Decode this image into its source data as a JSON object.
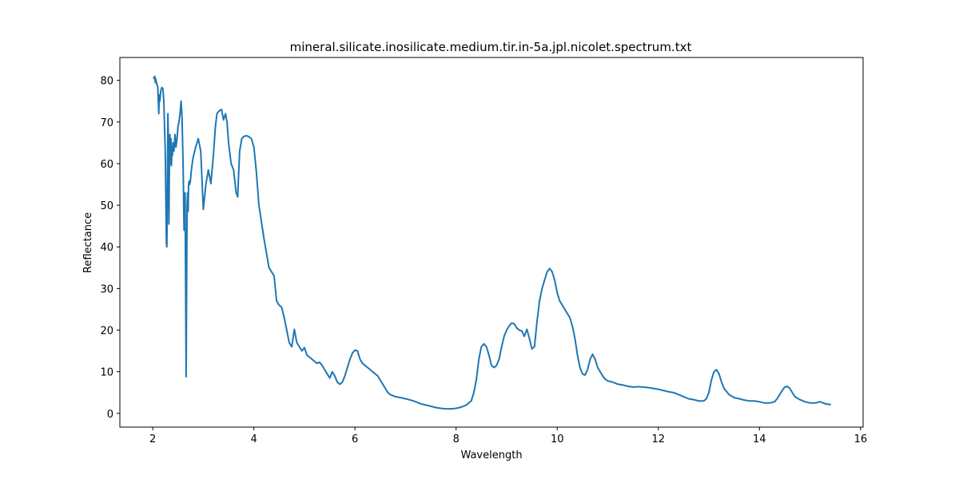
{
  "chart_data": {
    "type": "line",
    "title": "mineral.silicate.inosilicate.medium.tir.in-5a.jpl.nicolet.spectrum.txt",
    "xlabel": "Wavelength",
    "ylabel": "Reflectance",
    "xlim": [
      1.35,
      16.05
    ],
    "ylim": [
      -3.3,
      85.5
    ],
    "xticks": [
      2,
      4,
      6,
      8,
      10,
      12,
      14,
      16
    ],
    "yticks": [
      0,
      10,
      20,
      30,
      40,
      50,
      60,
      70,
      80
    ],
    "grid": false,
    "legend": "none",
    "series": [
      {
        "color": "#1f77b4",
        "x": [
          2.02,
          2.04,
          2.05,
          2.06,
          2.08,
          2.1,
          2.12,
          2.13,
          2.14,
          2.16,
          2.18,
          2.2,
          2.22,
          2.25,
          2.27,
          2.28,
          2.29,
          2.3,
          2.31,
          2.32,
          2.33,
          2.34,
          2.35,
          2.36,
          2.37,
          2.38,
          2.39,
          2.4,
          2.42,
          2.44,
          2.46,
          2.48,
          2.5,
          2.52,
          2.54,
          2.56,
          2.58,
          2.6,
          2.62,
          2.64,
          2.66,
          2.68,
          2.69,
          2.7,
          2.71,
          2.72,
          2.73,
          2.74,
          2.75,
          2.76,
          2.78,
          2.8,
          2.85,
          2.9,
          2.95,
          3.0,
          3.05,
          3.1,
          3.15,
          3.2,
          3.24,
          3.27,
          3.3,
          3.33,
          3.36,
          3.4,
          3.44,
          3.47,
          3.5,
          3.55,
          3.6,
          3.65,
          3.68,
          3.7,
          3.72,
          3.76,
          3.8,
          3.85,
          3.9,
          3.95,
          4.0,
          4.05,
          4.1,
          4.2,
          4.3,
          4.4,
          4.45,
          4.5,
          4.55,
          4.6,
          4.65,
          4.7,
          4.75,
          4.8,
          4.85,
          4.9,
          4.95,
          5.0,
          5.05,
          5.1,
          5.15,
          5.2,
          5.25,
          5.3,
          5.35,
          5.4,
          5.45,
          5.5,
          5.55,
          5.6,
          5.65,
          5.7,
          5.75,
          5.8,
          5.85,
          5.9,
          5.95,
          6.0,
          6.05,
          6.1,
          6.15,
          6.2,
          6.25,
          6.3,
          6.35,
          6.4,
          6.45,
          6.5,
          6.55,
          6.6,
          6.65,
          6.7,
          6.8,
          6.9,
          7.0,
          7.1,
          7.2,
          7.3,
          7.4,
          7.5,
          7.6,
          7.7,
          7.8,
          7.9,
          8.0,
          8.1,
          8.2,
          8.3,
          8.35,
          8.4,
          8.45,
          8.5,
          8.55,
          8.6,
          8.65,
          8.7,
          8.75,
          8.8,
          8.85,
          8.9,
          8.95,
          9.0,
          9.05,
          9.1,
          9.15,
          9.2,
          9.25,
          9.3,
          9.35,
          9.4,
          9.45,
          9.5,
          9.55,
          9.6,
          9.65,
          9.7,
          9.75,
          9.8,
          9.85,
          9.9,
          9.95,
          10.0,
          10.05,
          10.1,
          10.15,
          10.2,
          10.25,
          10.3,
          10.35,
          10.4,
          10.45,
          10.5,
          10.55,
          10.6,
          10.65,
          10.7,
          10.75,
          10.8,
          10.85,
          10.9,
          10.95,
          11.0,
          11.1,
          11.2,
          11.3,
          11.4,
          11.5,
          11.6,
          11.7,
          11.8,
          11.9,
          12.0,
          12.1,
          12.2,
          12.3,
          12.4,
          12.5,
          12.6,
          12.7,
          12.8,
          12.9,
          12.95,
          13.0,
          13.05,
          13.1,
          13.15,
          13.2,
          13.25,
          13.3,
          13.4,
          13.5,
          13.6,
          13.7,
          13.8,
          13.9,
          14.0,
          14.1,
          14.2,
          14.3,
          14.35,
          14.4,
          14.45,
          14.5,
          14.55,
          14.6,
          14.65,
          14.7,
          14.8,
          14.9,
          15.0,
          15.1,
          15.2,
          15.3,
          15.4
        ],
        "y": [
          80.5,
          81.0,
          79.5,
          80.3,
          79.0,
          78.5,
          72.0,
          76.5,
          75.0,
          77.5,
          78.3,
          78.0,
          75.0,
          62.0,
          41.0,
          40.0,
          55.0,
          72.0,
          65.0,
          45.5,
          61.0,
          67.0,
          60.0,
          66.0,
          59.5,
          64.0,
          62.0,
          65.0,
          63.0,
          67.0,
          64.0,
          66.0,
          69.0,
          70.0,
          72.0,
          75.0,
          71.0,
          60.0,
          44.0,
          53.0,
          8.8,
          50.0,
          53.0,
          48.5,
          55.0,
          55.8,
          55.0,
          55.5,
          56.5,
          58.0,
          60.0,
          61.5,
          64.0,
          66.0,
          63.0,
          49.0,
          55.0,
          58.5,
          55.2,
          62.0,
          69.0,
          72.0,
          72.5,
          72.8,
          73.0,
          70.5,
          72.0,
          70.0,
          65.0,
          60.0,
          58.5,
          53.0,
          52.0,
          58.0,
          63.0,
          66.0,
          66.5,
          66.7,
          66.5,
          66.0,
          64.0,
          58.0,
          50.0,
          42.0,
          35.0,
          33.0,
          27.0,
          26.0,
          25.5,
          23.0,
          20.0,
          17.0,
          16.0,
          20.2,
          17.0,
          16.0,
          15.0,
          15.8,
          14.0,
          13.5,
          13.0,
          12.5,
          12.0,
          12.3,
          11.5,
          10.5,
          9.5,
          8.5,
          10.0,
          9.0,
          7.5,
          7.0,
          7.5,
          9.0,
          11.0,
          13.0,
          14.5,
          15.2,
          15.0,
          13.0,
          12.0,
          11.5,
          11.0,
          10.5,
          10.0,
          9.5,
          9.0,
          8.0,
          7.0,
          6.0,
          5.0,
          4.5,
          4.0,
          3.8,
          3.5,
          3.2,
          2.8,
          2.3,
          2.0,
          1.7,
          1.4,
          1.2,
          1.1,
          1.1,
          1.2,
          1.5,
          2.0,
          3.0,
          5.0,
          8.0,
          13.0,
          16.0,
          16.7,
          16.0,
          14.0,
          11.5,
          11.0,
          11.5,
          13.0,
          16.0,
          18.5,
          20.0,
          21.0,
          21.7,
          21.5,
          20.5,
          20.0,
          19.8,
          18.5,
          20.2,
          18.0,
          15.5,
          16.0,
          22.0,
          27.0,
          30.0,
          32.0,
          34.0,
          34.8,
          34.0,
          32.0,
          29.0,
          27.0,
          26.0,
          25.0,
          24.0,
          23.0,
          21.0,
          18.0,
          14.0,
          11.0,
          9.5,
          9.2,
          10.5,
          13.0,
          14.2,
          13.0,
          11.0,
          10.0,
          9.0,
          8.2,
          7.8,
          7.5,
          7.0,
          6.8,
          6.5,
          6.3,
          6.4,
          6.3,
          6.2,
          6.0,
          5.8,
          5.5,
          5.2,
          5.0,
          4.5,
          4.0,
          3.5,
          3.3,
          3.0,
          3.0,
          3.5,
          5.0,
          8.0,
          10.0,
          10.5,
          9.5,
          7.5,
          6.0,
          4.5,
          3.8,
          3.5,
          3.2,
          3.0,
          3.0,
          2.8,
          2.5,
          2.5,
          2.8,
          3.5,
          4.5,
          5.5,
          6.3,
          6.5,
          6.0,
          5.0,
          4.0,
          3.3,
          2.8,
          2.5,
          2.5,
          2.8,
          2.3,
          2.1
        ]
      }
    ]
  }
}
